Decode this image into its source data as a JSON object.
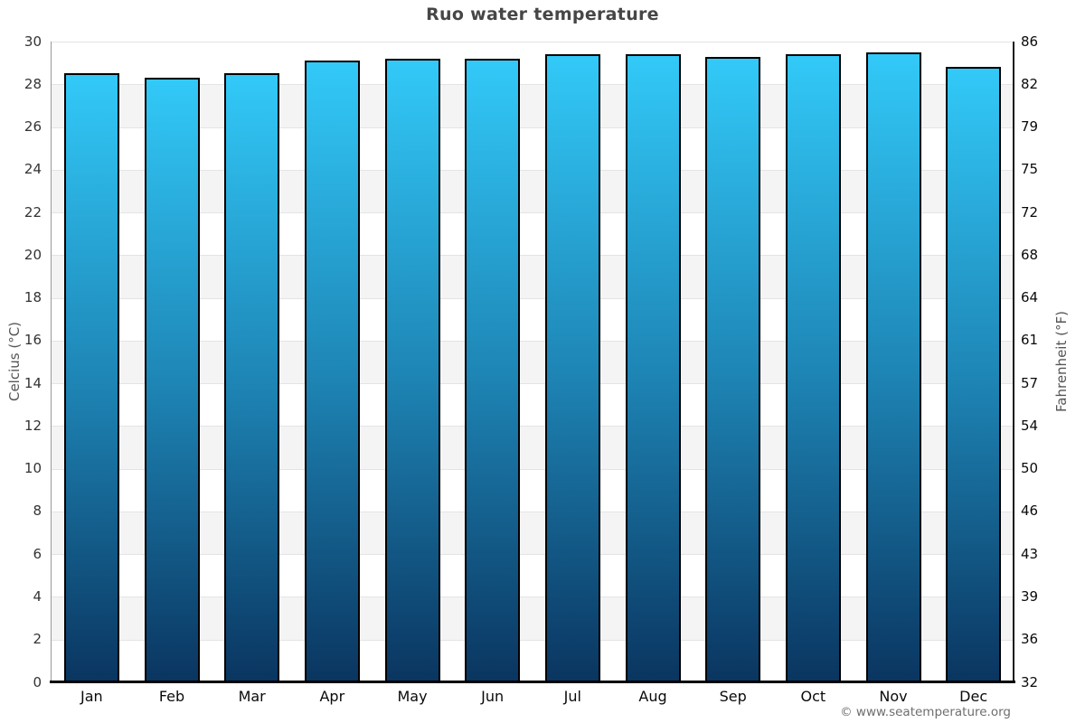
{
  "page": {
    "copyright": "© www.seatemperature.org"
  },
  "chart_data": {
    "type": "bar",
    "title": "Ruo water temperature",
    "categories": [
      "Jan",
      "Feb",
      "Mar",
      "Apr",
      "May",
      "Jun",
      "Jul",
      "Aug",
      "Sep",
      "Oct",
      "Nov",
      "Dec"
    ],
    "values": [
      28.5,
      28.3,
      28.5,
      29.1,
      29.2,
      29.2,
      29.4,
      29.4,
      29.3,
      29.4,
      29.5,
      28.8
    ],
    "xlabel": "",
    "ylabel_left": "Celcius (°C)",
    "ylabel_right": "Fahrenheit (°F)",
    "ylim": [
      0,
      30
    ],
    "ytick_step_celsius": 2,
    "yticks_left": [
      "0",
      "2",
      "4",
      "6",
      "8",
      "10",
      "12",
      "14",
      "16",
      "18",
      "20",
      "22",
      "24",
      "26",
      "28",
      "30"
    ],
    "yticks_right": [
      "32",
      "36",
      "39",
      "43",
      "46",
      "50",
      "54",
      "57",
      "61",
      "64",
      "68",
      "72",
      "75",
      "79",
      "82",
      "86"
    ],
    "grid": "alternating-horizontal-bands-every-2C",
    "legend": "none",
    "colors": {
      "bar_gradient_top": "#32c9f8",
      "bar_gradient_mid": "#1e86b6",
      "bar_gradient_bottom": "#0a3560",
      "bar_border": "#000000",
      "band_fill": "#f4f4f4",
      "gridline": "#e4e4e4",
      "title_text": "#464646",
      "axis_label_text": "#555555",
      "tick_text_left": "#333333",
      "tick_text_right": "#0a0a0a",
      "baseline": "#000000"
    }
  }
}
